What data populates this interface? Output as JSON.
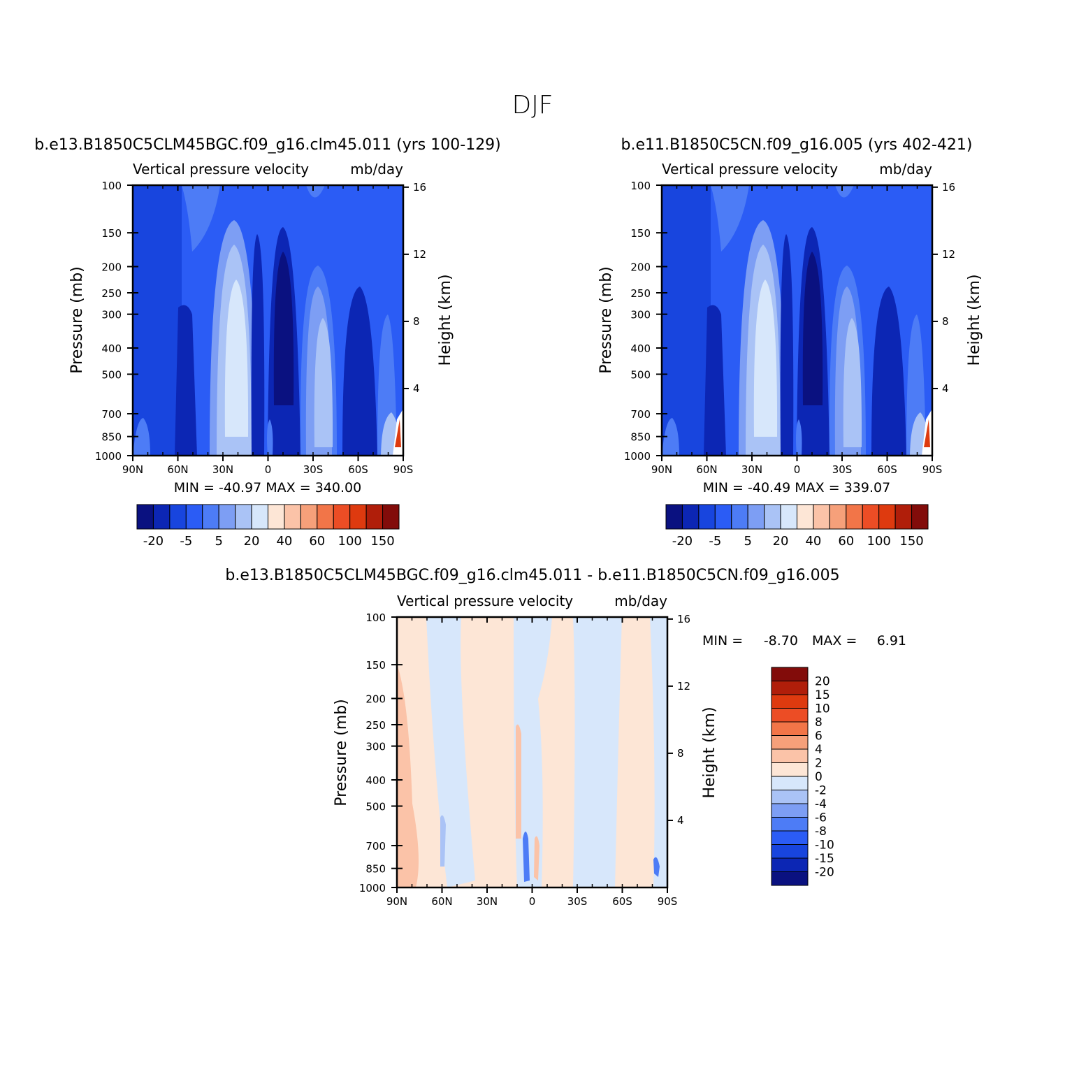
{
  "figure": {
    "title": "DJF"
  },
  "colors": {
    "main_scale": [
      "#0a1180",
      "#0c26b4",
      "#1845de",
      "#2b5cf5",
      "#4d7cf6",
      "#7d9ef4",
      "#aac3f6",
      "#d7e7fb",
      "#fde6d6",
      "#fbc3a8",
      "#f6a07a",
      "#f27548",
      "#ec4d25",
      "#de3a0f",
      "#b01e0a",
      "#820c0a"
    ],
    "diff_scale": [
      "#0a1180",
      "#0c26b4",
      "#1845de",
      "#2b5cf5",
      "#4d7cf6",
      "#7d9ef4",
      "#aac3f6",
      "#d7e7fb",
      "#fde6d6",
      "#fbc3a8",
      "#f6a07a",
      "#f27548",
      "#ec4d25",
      "#de3a0f",
      "#b01e0a",
      "#820c0a"
    ]
  },
  "chart_data": [
    {
      "type": "heatmap",
      "title": "b.e13.B1850C5CLM45BGC.f09_g16.clm45.011 (yrs 100-129)",
      "subtitle_left": "Vertical pressure velocity",
      "subtitle_right": "mb/day",
      "xlabel": "",
      "ylabel": "Pressure (mb)",
      "y2label": "Height (km)",
      "x_ticks": [
        "90N",
        "60N",
        "30N",
        "0",
        "30S",
        "60S",
        "90S"
      ],
      "y_ticks": [
        100,
        150,
        200,
        250,
        300,
        400,
        500,
        700,
        850,
        1000
      ],
      "y2_ticks": [
        16,
        12,
        8,
        4
      ],
      "stats": "MIN = -40.97   MAX = 340.00",
      "colorbar_labels": [
        "-20",
        "-5",
        "5",
        "20",
        "40",
        "60",
        "100",
        "150"
      ],
      "field": [
        {
          "lat": 90,
          "omega": -3
        },
        {
          "lat": 75,
          "omega": -12
        },
        {
          "lat": 60,
          "omega": -18
        },
        {
          "lat": 45,
          "omega": -10
        },
        {
          "lat": 30,
          "omega": 12
        },
        {
          "lat": 20,
          "omega": 20
        },
        {
          "lat": 10,
          "omega": -15
        },
        {
          "lat": 0,
          "omega": -22
        },
        {
          "lat": -10,
          "omega": -28
        },
        {
          "lat": -20,
          "omega": -8
        },
        {
          "lat": -30,
          "omega": 12
        },
        {
          "lat": -45,
          "omega": -8
        },
        {
          "lat": -60,
          "omega": -18
        },
        {
          "lat": -75,
          "omega": -5
        },
        {
          "lat": -88,
          "omega": 150
        }
      ]
    },
    {
      "type": "heatmap",
      "title": "b.e11.B1850C5CN.f09_g16.005 (yrs 402-421)",
      "subtitle_left": "Vertical pressure velocity",
      "subtitle_right": "mb/day",
      "xlabel": "",
      "ylabel": "Pressure (mb)",
      "y2label": "Height (km)",
      "x_ticks": [
        "90N",
        "60N",
        "30N",
        "0",
        "30S",
        "60S",
        "90S"
      ],
      "y_ticks": [
        100,
        150,
        200,
        250,
        300,
        400,
        500,
        700,
        850,
        1000
      ],
      "y2_ticks": [
        16,
        12,
        8,
        4
      ],
      "stats": "MIN = -40.49   MAX = 339.07",
      "colorbar_labels": [
        "-20",
        "-5",
        "5",
        "20",
        "40",
        "60",
        "100",
        "150"
      ],
      "field": [
        {
          "lat": 90,
          "omega": -3
        },
        {
          "lat": 75,
          "omega": -12
        },
        {
          "lat": 60,
          "omega": -18
        },
        {
          "lat": 45,
          "omega": -10
        },
        {
          "lat": 30,
          "omega": 12
        },
        {
          "lat": 20,
          "omega": 20
        },
        {
          "lat": 10,
          "omega": -15
        },
        {
          "lat": 0,
          "omega": -22
        },
        {
          "lat": -10,
          "omega": -28
        },
        {
          "lat": -20,
          "omega": -8
        },
        {
          "lat": -30,
          "omega": 12
        },
        {
          "lat": -45,
          "omega": -8
        },
        {
          "lat": -60,
          "omega": -18
        },
        {
          "lat": -75,
          "omega": -5
        },
        {
          "lat": -88,
          "omega": 150
        }
      ]
    },
    {
      "type": "heatmap",
      "title": "b.e13.B1850C5CLM45BGC.f09_g16.clm45.011 - b.e11.B1850C5CN.f09_g16.005",
      "subtitle_left": "Vertical pressure velocity",
      "subtitle_right": "mb/day",
      "xlabel": "",
      "ylabel": "Pressure (mb)",
      "y2label": "Height (km)",
      "x_ticks": [
        "90N",
        "60N",
        "30N",
        "0",
        "30S",
        "60S",
        "90S"
      ],
      "y_ticks": [
        100,
        150,
        200,
        250,
        300,
        400,
        500,
        700,
        850,
        1000
      ],
      "y2_ticks": [
        16,
        12,
        8,
        4
      ],
      "stats_min_label": "MIN =",
      "stats_min": "-8.70",
      "stats_max_label": "MAX =",
      "stats_max": "6.91",
      "colorbar_labels": [
        "20",
        "15",
        "10",
        "8",
        "6",
        "4",
        "2",
        "0",
        "-2",
        "-4",
        "-6",
        "-8",
        "-10",
        "-15",
        "-20"
      ],
      "field": [
        {
          "lat": 90,
          "omega": 1
        },
        {
          "lat": 85,
          "omega": 3
        },
        {
          "lat": 72,
          "omega": 1
        },
        {
          "lat": 60,
          "omega": -1
        },
        {
          "lat": 40,
          "omega": -1
        },
        {
          "lat": 25,
          "omega": 1
        },
        {
          "lat": 10,
          "omega": 1
        },
        {
          "lat": 5,
          "omega": 3
        },
        {
          "lat": 0,
          "omega": -5
        },
        {
          "lat": -10,
          "omega": 1
        },
        {
          "lat": -25,
          "omega": -1
        },
        {
          "lat": -40,
          "omega": -1
        },
        {
          "lat": -55,
          "omega": 1
        },
        {
          "lat": -80,
          "omega": 1
        },
        {
          "lat": -88,
          "omega": -1
        }
      ]
    }
  ]
}
